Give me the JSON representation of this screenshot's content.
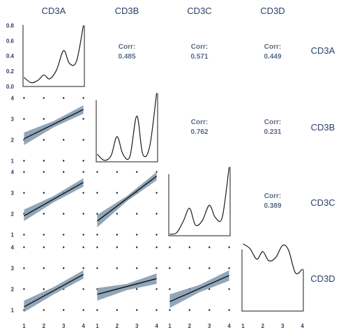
{
  "chart_data": {
    "type": "scatter",
    "title": "",
    "variables": [
      "CD3A",
      "CD3B",
      "CD3C",
      "CD3D"
    ],
    "corr_label": "Corr:",
    "scatter_points": {
      "x": [
        1,
        2,
        3,
        4
      ],
      "y": [
        1,
        2,
        3,
        4
      ]
    },
    "correlations": [
      {
        "row": "CD3A",
        "col": "CD3B",
        "value": "0.485"
      },
      {
        "row": "CD3A",
        "col": "CD3C",
        "value": "0.571"
      },
      {
        "row": "CD3A",
        "col": "CD3D",
        "value": "0.449"
      },
      {
        "row": "CD3B",
        "col": "CD3C",
        "value": "0.762"
      },
      {
        "row": "CD3B",
        "col": "CD3D",
        "value": "0.231"
      },
      {
        "row": "CD3C",
        "col": "CD3D",
        "value": "0.389"
      }
    ],
    "regressions": [
      {
        "x_var": "CD3A",
        "y_var": "CD3B",
        "fit": [
          [
            1,
            2.05
          ],
          [
            4,
            3.45
          ]
        ],
        "band": [
          [
            1,
            1.75,
            2.35
          ],
          [
            2.5,
            2.6,
            2.9
          ],
          [
            4,
            3.25,
            3.65
          ]
        ]
      },
      {
        "x_var": "CD3A",
        "y_var": "CD3C",
        "fit": [
          [
            1,
            1.9
          ],
          [
            4,
            3.5
          ]
        ],
        "band": [
          [
            1,
            1.65,
            2.2
          ],
          [
            2.5,
            2.55,
            2.85
          ],
          [
            4,
            3.3,
            3.7
          ]
        ]
      },
      {
        "x_var": "CD3B",
        "y_var": "CD3C",
        "fit": [
          [
            1,
            1.65
          ],
          [
            4,
            3.8
          ]
        ],
        "band": [
          [
            1,
            1.35,
            1.95
          ],
          [
            2.5,
            2.6,
            2.85
          ],
          [
            4,
            3.6,
            4.0
          ]
        ]
      },
      {
        "x_var": "CD3A",
        "y_var": "CD3D",
        "fit": [
          [
            1,
            1.15
          ],
          [
            4,
            2.7
          ]
        ],
        "band": [
          [
            1,
            0.9,
            1.45
          ],
          [
            2.5,
            1.75,
            2.1
          ],
          [
            4,
            2.5,
            2.9
          ]
        ]
      },
      {
        "x_var": "CD3B",
        "y_var": "CD3D",
        "fit": [
          [
            1,
            1.75
          ],
          [
            4,
            2.5
          ]
        ],
        "band": [
          [
            1,
            1.45,
            2.05
          ],
          [
            2.5,
            1.95,
            2.25
          ],
          [
            4,
            2.25,
            2.75
          ]
        ]
      },
      {
        "x_var": "CD3C",
        "y_var": "CD3D",
        "fit": [
          [
            1,
            1.4
          ],
          [
            4,
            2.65
          ]
        ],
        "band": [
          [
            1,
            1.1,
            1.75
          ],
          [
            2.5,
            1.85,
            2.2
          ],
          [
            4,
            2.4,
            2.9
          ]
        ]
      }
    ],
    "densities": [
      {
        "var": "CD3A",
        "x": [
          1,
          1.35,
          1.7,
          2.0,
          2.3,
          2.65,
          3.0,
          3.3,
          3.65,
          4.0
        ],
        "y": [
          0.12,
          0.05,
          0.08,
          0.15,
          0.1,
          0.22,
          0.47,
          0.3,
          0.33,
          0.8
        ]
      },
      {
        "var": "CD3B",
        "x": [
          1,
          1.35,
          1.7,
          2.0,
          2.3,
          2.65,
          3.0,
          3.3,
          3.65,
          4.0
        ],
        "y": [
          0.1,
          0.02,
          0.08,
          0.33,
          0.1,
          0.07,
          0.6,
          0.1,
          0.2,
          0.9
        ]
      },
      {
        "var": "CD3C",
        "x": [
          1,
          1.35,
          1.7,
          2.0,
          2.3,
          2.65,
          3.0,
          3.3,
          3.65,
          4.0
        ],
        "y": [
          0.02,
          0.04,
          0.2,
          0.36,
          0.14,
          0.2,
          0.4,
          0.24,
          0.24,
          0.9
        ]
      },
      {
        "var": "CD3D",
        "x": [
          1,
          1.35,
          1.7,
          2.0,
          2.3,
          2.65,
          3.0,
          3.3,
          3.65,
          4.0
        ],
        "y": [
          0.88,
          0.82,
          0.68,
          0.78,
          0.66,
          0.7,
          0.86,
          0.8,
          0.5,
          0.55
        ]
      }
    ],
    "density_axis_ticks": [
      "0.0",
      "0.2",
      "0.4",
      "0.6",
      "0.8"
    ],
    "value_axis_ticks": [
      "1",
      "2",
      "3",
      "4"
    ],
    "density_ylim": [
      0,
      0.85
    ],
    "value_lim": [
      0.95,
      4.05
    ],
    "colors": {
      "band": "#7e97ad",
      "line": "#1a1a1a",
      "points": "#1a1a1a",
      "text": "#2c3e66",
      "corr": "#5a6b86"
    }
  }
}
